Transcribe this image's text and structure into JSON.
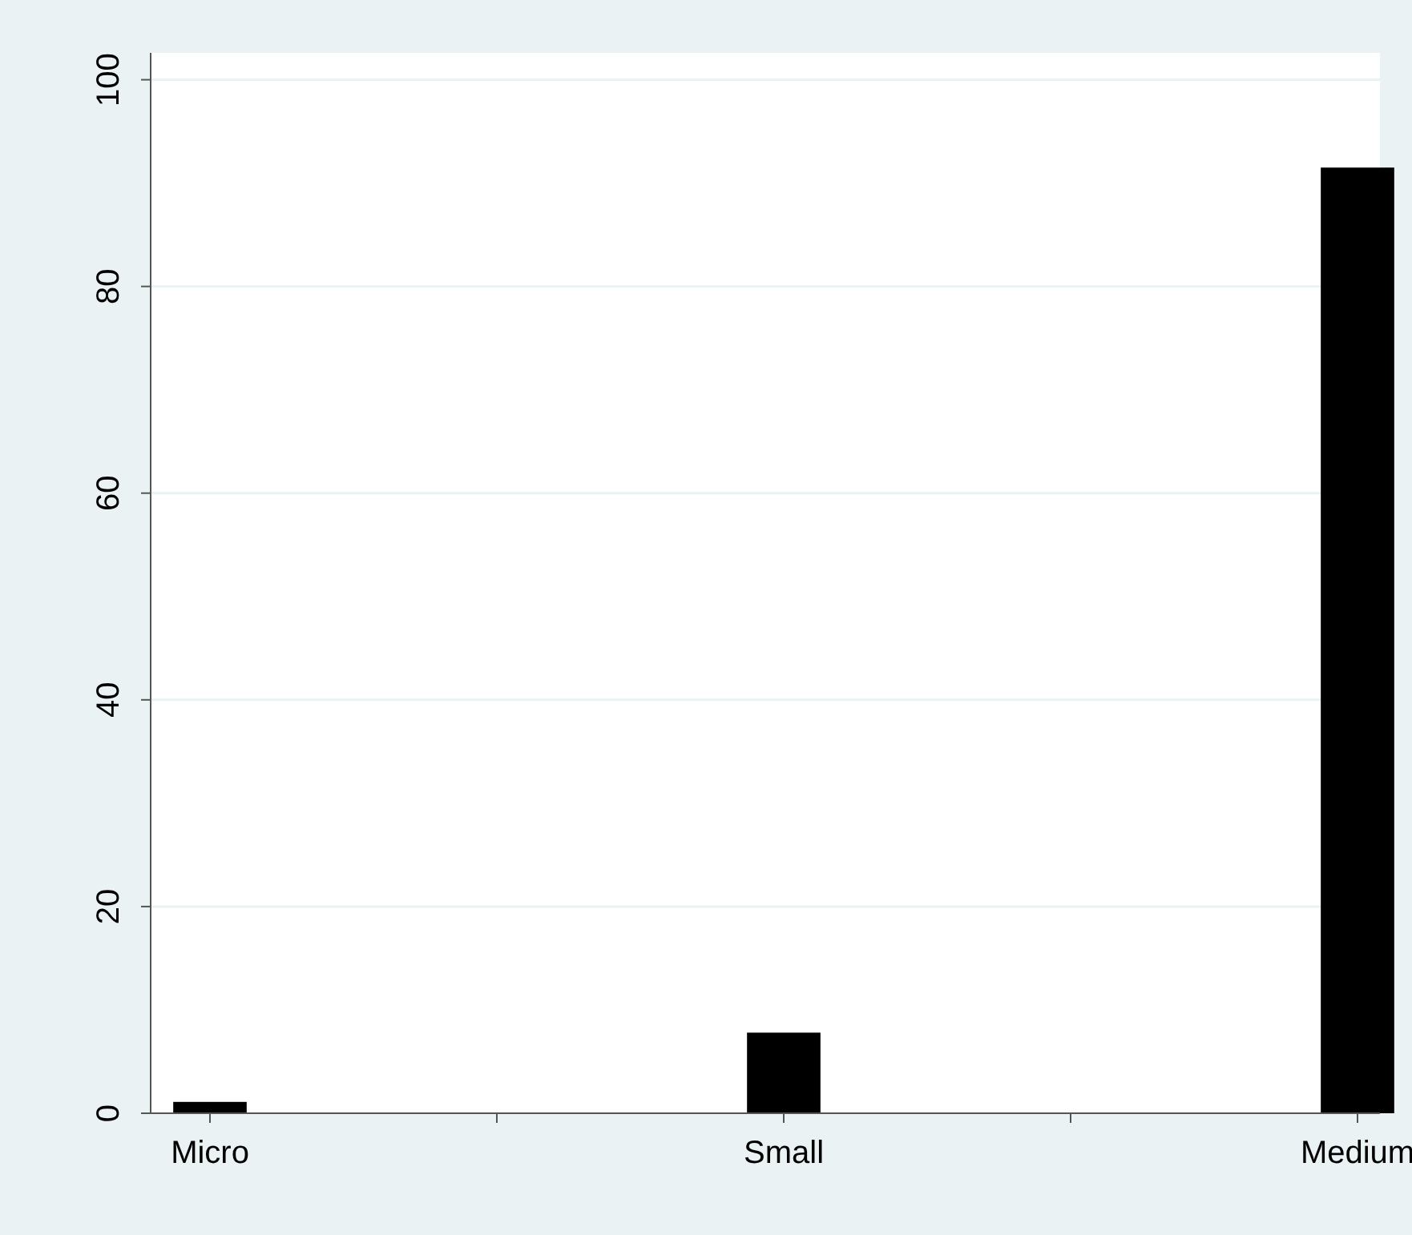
{
  "chart_data": {
    "type": "bar",
    "categories": [
      "Micro",
      "Small",
      "Medium"
    ],
    "values": [
      1.1,
      7.8,
      91.5
    ],
    "color": "#000000",
    "ylim": [
      0,
      102.6
    ],
    "yticks": [
      0,
      20,
      40,
      60,
      80,
      100
    ],
    "grid": "y"
  }
}
